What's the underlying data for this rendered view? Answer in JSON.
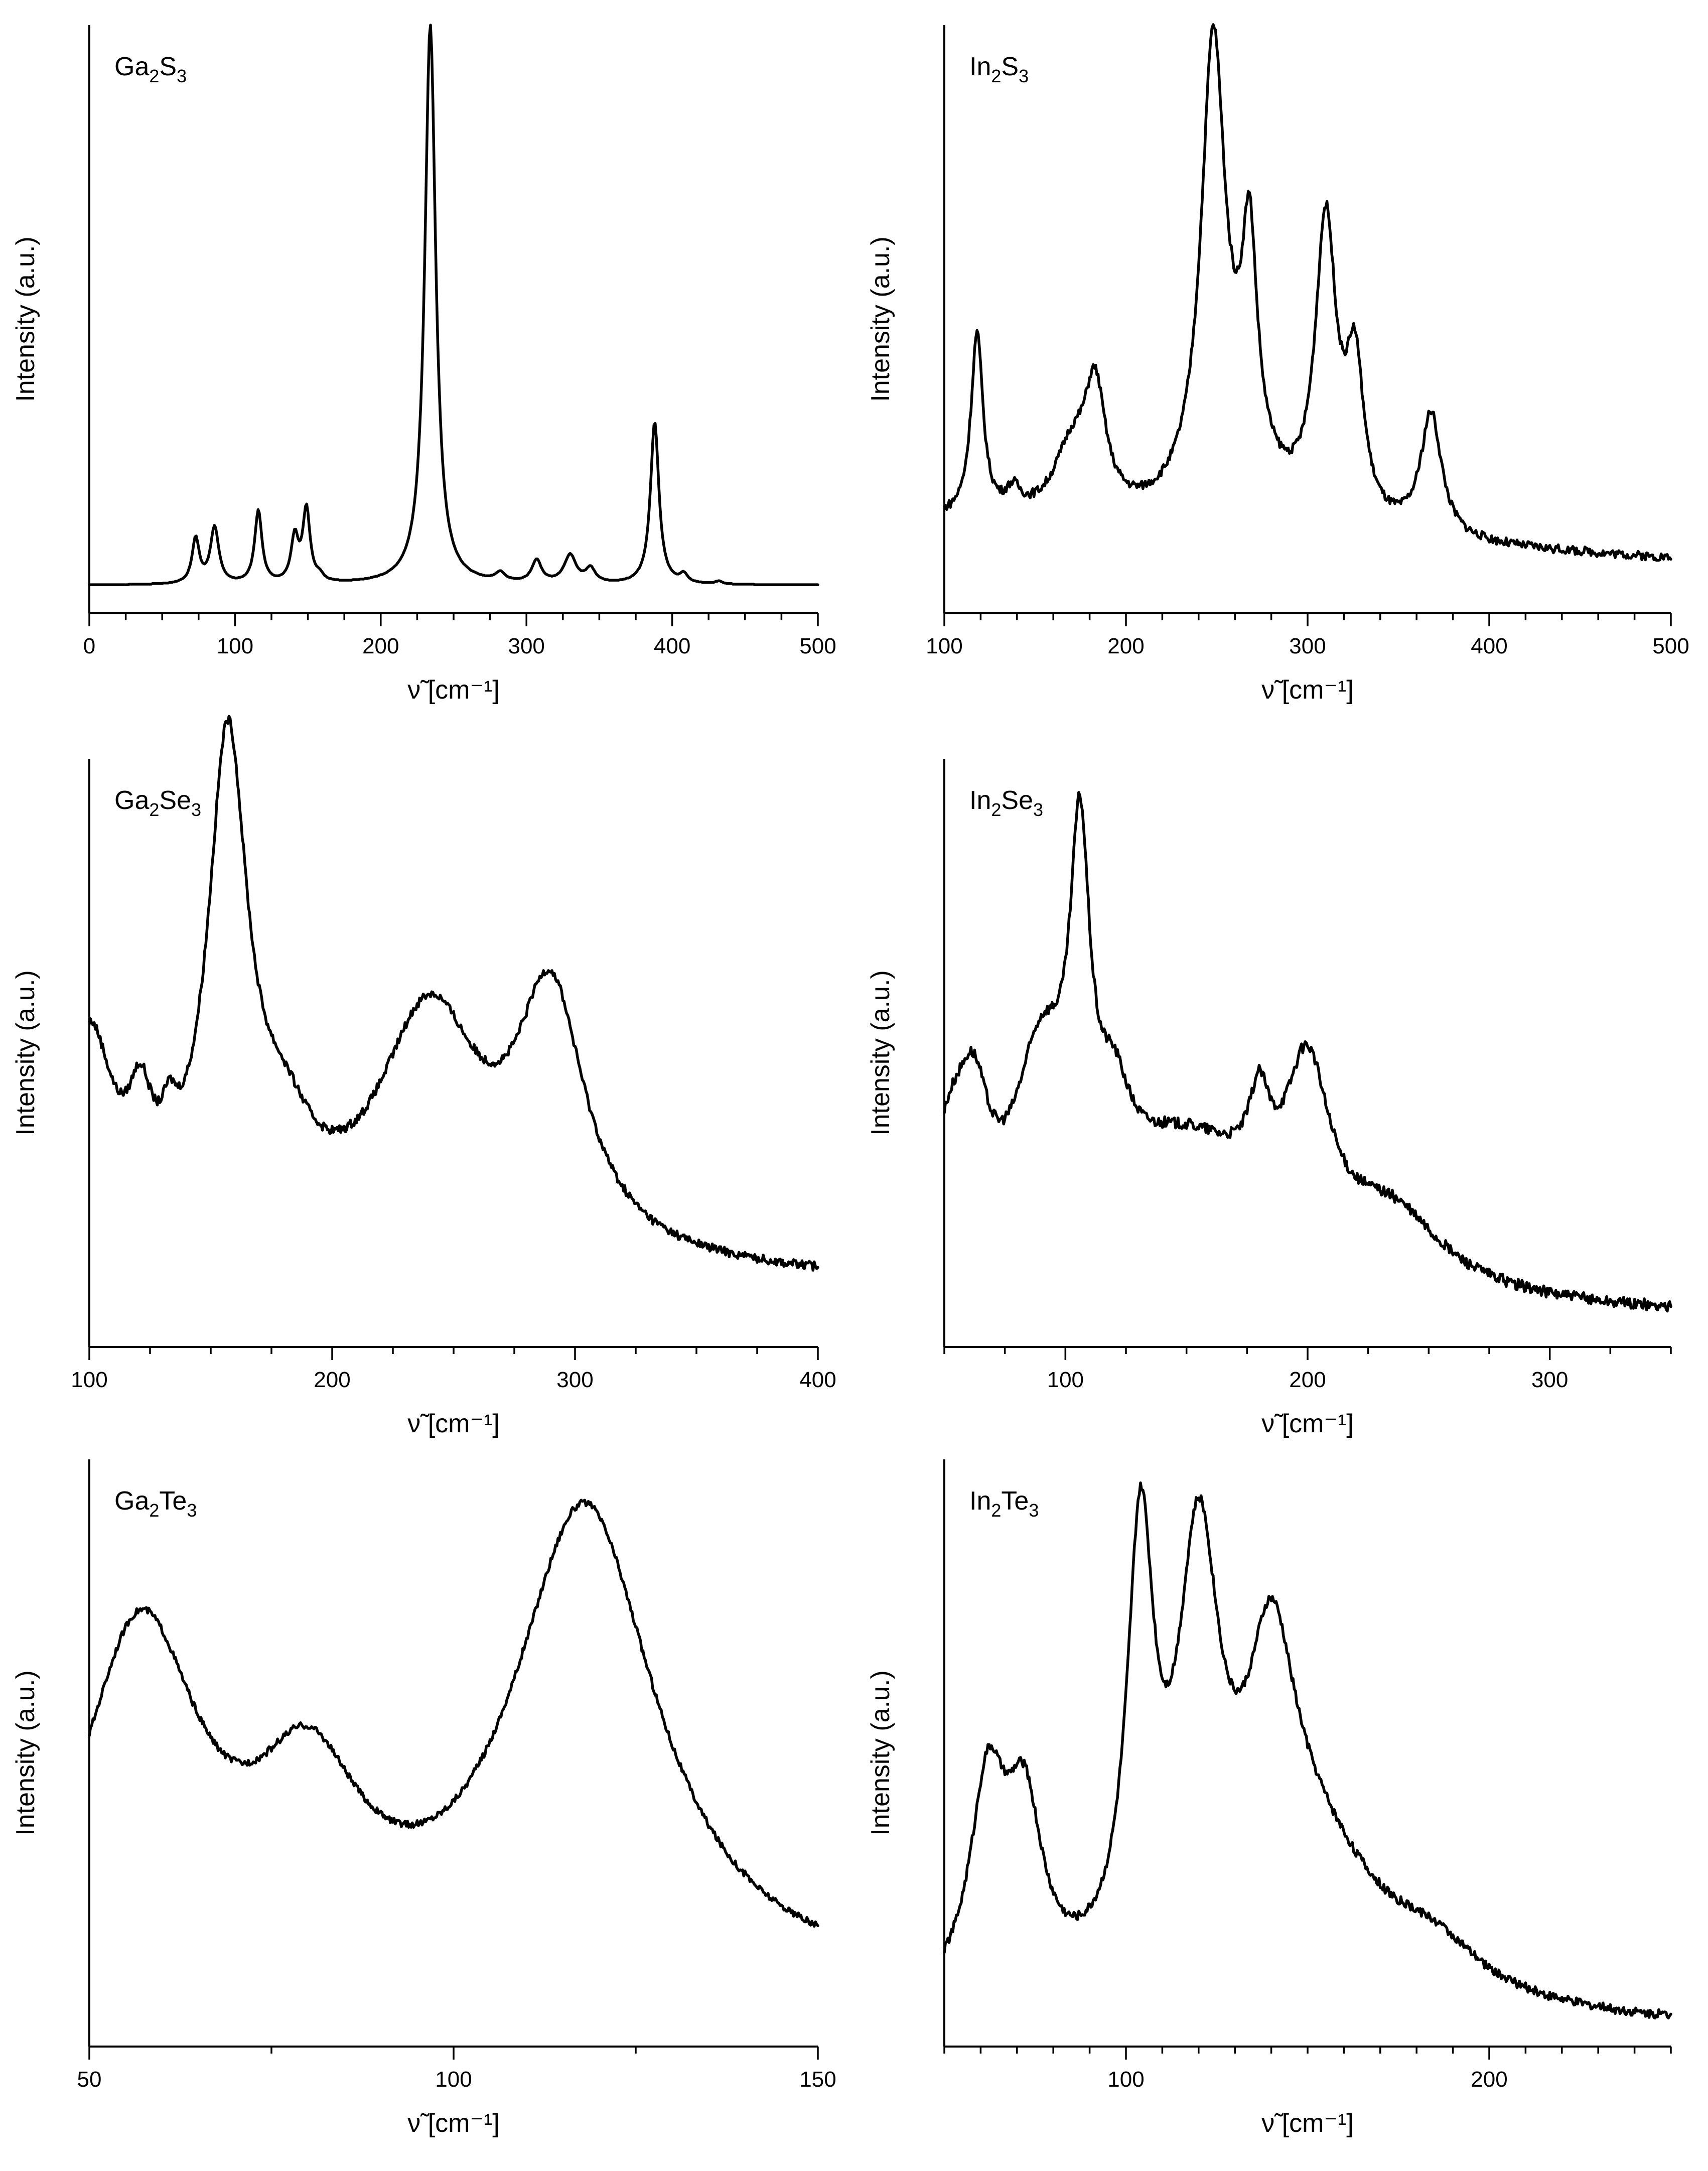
{
  "chart_data": [
    {
      "type": "line",
      "title": "Ga2S3",
      "title_parts": {
        "a": "Ga",
        "a_sub": "2",
        "b": "S",
        "b_sub": "3"
      },
      "xlabel": "ν̃ [cm⁻¹]",
      "ylabel": "Intensity (a.u.)",
      "xlim": [
        0,
        500
      ],
      "ylim": [
        0,
        1.05
      ],
      "xticks": [
        0,
        100,
        200,
        300,
        400,
        500
      ],
      "xtick_labels": [
        "0",
        "100",
        "200",
        "300",
        "400",
        "500"
      ],
      "x_minor_step": 25,
      "yticks": [],
      "baseline": 0.05,
      "peaks": [
        [
          73,
          0.08,
          3
        ],
        [
          86,
          0.1,
          3.5
        ],
        [
          116,
          0.13,
          3
        ],
        [
          141,
          0.08,
          3
        ],
        [
          149,
          0.13,
          3
        ],
        [
          158,
          0.01,
          3
        ],
        [
          234,
          1.0,
          4.5
        ],
        [
          282,
          0.015,
          4
        ],
        [
          307,
          0.04,
          4
        ],
        [
          330,
          0.05,
          5
        ],
        [
          344,
          0.025,
          4
        ],
        [
          388,
          0.29,
          3.5
        ],
        [
          408,
          0.015,
          3
        ],
        [
          432,
          0.005,
          3
        ]
      ],
      "slope": 0,
      "noise": 0.0,
      "series": [
        {
          "name": "Ga2S3",
          "values": []
        }
      ]
    },
    {
      "type": "line",
      "title": "In2S3",
      "title_parts": {
        "a": "In",
        "a_sub": "2",
        "b": "S",
        "b_sub": "3"
      },
      "xlabel": "ν̃ [cm⁻¹]",
      "ylabel": "Intensity (a.u.)",
      "xlim": [
        100,
        500
      ],
      "ylim": [
        0,
        1.1
      ],
      "xticks": [
        100,
        200,
        300,
        400,
        500
      ],
      "xtick_labels": [
        "100",
        "200",
        "300",
        "400",
        "500"
      ],
      "x_minor_step": 20,
      "yticks": [],
      "baseline": 0.1,
      "peaks": [
        [
          118,
          0.34,
          4
        ],
        [
          138,
          0.04,
          5
        ],
        [
          170,
          0.12,
          12
        ],
        [
          183,
          0.22,
          7
        ],
        [
          248,
          0.82,
          8
        ],
        [
          268,
          0.4,
          5
        ],
        [
          310,
          0.55,
          7
        ],
        [
          326,
          0.28,
          6
        ],
        [
          368,
          0.23,
          7
        ],
        [
          260,
          0.12,
          25
        ]
      ],
      "slope": 0.07,
      "noise": 0.008,
      "series": [
        {
          "name": "In2S3",
          "values": []
        }
      ]
    },
    {
      "type": "line",
      "title": "Ga2Se3",
      "title_parts": {
        "a": "Ga",
        "a_sub": "2",
        "b": "Se",
        "b_sub": "3"
      },
      "xlabel": "ν̃ [cm⁻¹]",
      "ylabel": "Intensity (a.u.)",
      "xlim": [
        100,
        400
      ],
      "ylim": [
        0,
        1.05
      ],
      "xticks": [
        100,
        200,
        300,
        400
      ],
      "xtick_labels": [
        "100",
        "200",
        "300",
        "400"
      ],
      "x_minor_step": 25,
      "yticks": [],
      "baseline": 0.12,
      "peaks": [
        [
          100,
          0.36,
          12
        ],
        [
          121,
          0.16,
          6
        ],
        [
          133,
          0.08,
          4
        ],
        [
          157,
          0.86,
          10
        ],
        [
          180,
          0.14,
          15
        ],
        [
          240,
          0.42,
          26
        ],
        [
          290,
          0.44,
          17
        ]
      ],
      "slope": 0.04,
      "noise": 0.008,
      "series": [
        {
          "name": "Ga2Se3",
          "values": []
        }
      ]
    },
    {
      "type": "line",
      "title": "In2Se3",
      "title_parts": {
        "a": "In",
        "a_sub": "2",
        "b": "Se",
        "b_sub": "3"
      },
      "xlabel": "ν̃ [cm⁻¹]",
      "ylabel": "Intensity (a.u.)",
      "xlim": [
        50,
        350
      ],
      "ylim": [
        0,
        1.05
      ],
      "xticks": [
        100,
        200,
        300
      ],
      "xtick_labels": [
        "100",
        "200",
        "300"
      ],
      "x_minor_step": 25,
      "yticks": [],
      "baseline": 0.05,
      "peaks": [
        [
          52,
          0.2,
          10
        ],
        [
          62,
          0.22,
          8
        ],
        [
          90,
          0.33,
          14
        ],
        [
          106,
          0.58,
          5
        ],
        [
          120,
          0.14,
          8
        ],
        [
          150,
          0.27,
          45
        ],
        [
          180,
          0.14,
          5
        ],
        [
          200,
          0.3,
          11
        ],
        [
          235,
          0.12,
          25
        ]
      ],
      "slope": 0.02,
      "noise": 0.01,
      "series": [
        {
          "name": "In2Se3",
          "values": []
        }
      ]
    },
    {
      "type": "line",
      "title": "Ga2Te3",
      "title_parts": {
        "a": "Ga",
        "a_sub": "2",
        "b": "Te",
        "b_sub": "3"
      },
      "xlabel": "ν̃ [cm⁻¹]",
      "ylabel": "Intensity (a.u.)",
      "xlim": [
        50,
        150
      ],
      "ylim": [
        0,
        1.05
      ],
      "xticks": [
        50,
        100,
        150
      ],
      "xtick_labels": [
        "50",
        "100",
        "150"
      ],
      "x_minor_step": 25,
      "yticks": [],
      "baseline": 0.1,
      "peaks": [
        [
          57,
          0.61,
          10
        ],
        [
          80,
          0.3,
          9
        ],
        [
          118,
          0.84,
          12
        ]
      ],
      "slope": 0.0,
      "noise": 0.006,
      "series": [
        {
          "name": "Ga2Te3",
          "values": []
        }
      ]
    },
    {
      "type": "line",
      "title": "In2Te3",
      "title_parts": {
        "a": "In",
        "a_sub": "2",
        "b": "Te",
        "b_sub": "3"
      },
      "xlabel": "ν̃ [cm⁻¹]",
      "ylabel": "Intensity (a.u.)",
      "xlim": [
        50,
        250
      ],
      "ylim": [
        0,
        1.05
      ],
      "xticks": [
        100,
        200
      ],
      "xtick_labels": [
        "100",
        "200"
      ],
      "x_minor_step": 10,
      "yticks": [],
      "baseline": 0.03,
      "peaks": [
        [
          62,
          0.36,
          6
        ],
        [
          72,
          0.3,
          6
        ],
        [
          104,
          0.74,
          4.5
        ],
        [
          120,
          0.7,
          7
        ],
        [
          140,
          0.42,
          8
        ],
        [
          150,
          0.28,
          25
        ],
        [
          185,
          0.07,
          15
        ]
      ],
      "slope": 0.02,
      "noise": 0.008,
      "series": [
        {
          "name": "In2Te3",
          "values": []
        }
      ]
    }
  ]
}
